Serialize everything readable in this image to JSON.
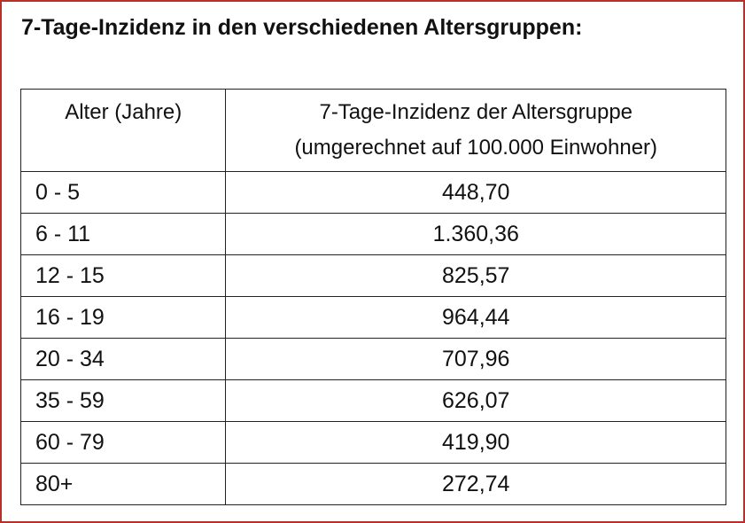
{
  "title": "7-Tage-Inzidenz in den verschiedenen Altersgruppen:",
  "table": {
    "header": {
      "age": "Alter (Jahre)",
      "value_line1": "7-Tage-Inzidenz der Altersgruppe",
      "value_line2": "(umgerechnet auf 100.000 Einwohner)"
    },
    "rows": [
      {
        "age": "0 - 5",
        "value": "448,70"
      },
      {
        "age": "6 - 11",
        "value": "1.360,36"
      },
      {
        "age": "12 - 15",
        "value": "825,57"
      },
      {
        "age": "16 - 19",
        "value": "964,44"
      },
      {
        "age": "20 - 34",
        "value": "707,96"
      },
      {
        "age": "35 - 59",
        "value": "626,07"
      },
      {
        "age": "60 - 79",
        "value": "419,90"
      },
      {
        "age": "80+",
        "value": "272,74"
      }
    ]
  },
  "colors": {
    "frame_border": "#b8302a",
    "text": "#111111",
    "grid": "#222222"
  }
}
